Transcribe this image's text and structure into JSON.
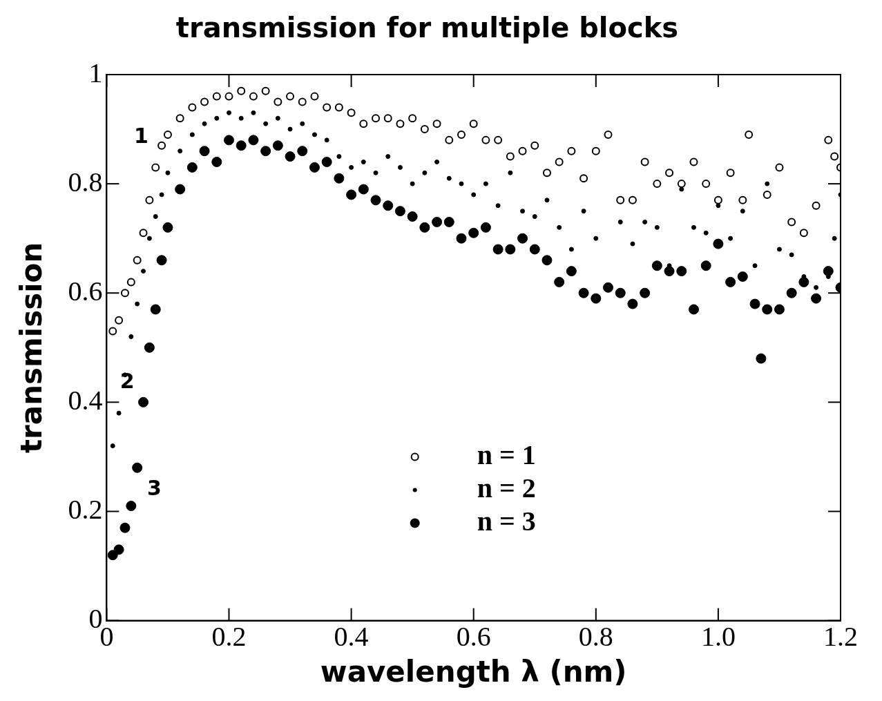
{
  "chart_data": {
    "type": "scatter",
    "title": "transmission for multiple blocks",
    "xlabel": "wavelength λ (nm)",
    "ylabel": "transmission",
    "xlim": [
      0,
      1.2
    ],
    "ylim": [
      0,
      1
    ],
    "xticks": [
      0,
      0.2,
      0.4,
      0.6,
      0.8,
      {
        "value": 1,
        "label": "1.0"
      },
      1.2
    ],
    "yticks": [
      0,
      0.2,
      0.4,
      0.6,
      0.8,
      1
    ],
    "grid": false,
    "legend": "center",
    "marker": "circle",
    "annotations": [
      "1",
      "2",
      "3"
    ],
    "series": [
      {
        "name": "n = 1",
        "color": "#000000",
        "x": [
          0.01,
          0.02,
          0.03,
          0.04,
          0.05,
          0.06,
          0.07,
          0.08,
          0.09,
          0.1,
          0.12,
          0.14,
          0.16,
          0.18,
          0.2,
          0.22,
          0.24,
          0.26,
          0.28,
          0.3,
          0.32,
          0.34,
          0.36,
          0.38,
          0.4,
          0.42,
          0.44,
          0.46,
          0.48,
          0.5,
          0.52,
          0.54,
          0.56,
          0.58,
          0.6,
          0.62,
          0.64,
          0.66,
          0.68,
          0.7,
          0.72,
          0.74,
          0.76,
          0.78,
          0.8,
          0.82,
          0.84,
          0.86,
          0.88,
          0.9,
          0.92,
          0.94,
          0.96,
          0.98,
          1.0,
          1.02,
          1.04,
          1.05,
          1.08,
          1.1,
          1.12,
          1.14,
          1.16,
          1.18,
          1.19,
          1.2
        ],
        "values": [
          0.53,
          0.55,
          0.6,
          0.62,
          0.66,
          0.71,
          0.77,
          0.83,
          0.87,
          0.89,
          0.92,
          0.94,
          0.95,
          0.96,
          0.96,
          0.97,
          0.96,
          0.97,
          0.95,
          0.96,
          0.95,
          0.96,
          0.94,
          0.94,
          0.93,
          0.91,
          0.92,
          0.92,
          0.91,
          0.92,
          0.9,
          0.91,
          0.88,
          0.89,
          0.91,
          0.88,
          0.88,
          0.85,
          0.86,
          0.87,
          0.82,
          0.84,
          0.86,
          0.81,
          0.86,
          0.89,
          0.77,
          0.77,
          0.84,
          0.8,
          0.82,
          0.8,
          0.84,
          0.8,
          0.77,
          0.82,
          0.77,
          0.89,
          0.78,
          0.83,
          0.73,
          0.71,
          0.76,
          0.88,
          0.85,
          0.83
        ]
      },
      {
        "name": "n = 2",
        "color": "#000000",
        "x": [
          0.01,
          0.02,
          0.03,
          0.04,
          0.05,
          0.06,
          0.07,
          0.08,
          0.09,
          0.1,
          0.12,
          0.14,
          0.16,
          0.18,
          0.2,
          0.22,
          0.24,
          0.26,
          0.28,
          0.3,
          0.32,
          0.34,
          0.36,
          0.38,
          0.4,
          0.42,
          0.44,
          0.46,
          0.48,
          0.5,
          0.52,
          0.54,
          0.56,
          0.58,
          0.6,
          0.62,
          0.64,
          0.66,
          0.68,
          0.7,
          0.72,
          0.74,
          0.76,
          0.78,
          0.8,
          0.84,
          0.86,
          0.88,
          0.9,
          0.92,
          0.94,
          0.96,
          0.98,
          1.0,
          1.02,
          1.04,
          1.06,
          1.08,
          1.1,
          1.12,
          1.14,
          1.16,
          1.18,
          1.19,
          1.2
        ],
        "values": [
          0.32,
          0.38,
          0.45,
          0.52,
          0.58,
          0.64,
          0.7,
          0.74,
          0.78,
          0.82,
          0.86,
          0.89,
          0.91,
          0.92,
          0.93,
          0.92,
          0.93,
          0.91,
          0.92,
          0.9,
          0.91,
          0.89,
          0.88,
          0.85,
          0.83,
          0.84,
          0.82,
          0.85,
          0.83,
          0.8,
          0.82,
          0.84,
          0.81,
          0.8,
          0.78,
          0.8,
          0.76,
          0.82,
          0.75,
          0.74,
          0.77,
          0.72,
          0.68,
          0.75,
          0.7,
          0.73,
          0.69,
          0.73,
          0.72,
          0.65,
          0.79,
          0.72,
          0.71,
          0.76,
          0.7,
          0.75,
          0.65,
          0.8,
          0.68,
          0.67,
          0.63,
          0.61,
          0.63,
          0.7,
          0.78
        ]
      },
      {
        "name": "n = 3",
        "color": "#000000",
        "x": [
          0.01,
          0.02,
          0.03,
          0.04,
          0.05,
          0.06,
          0.07,
          0.08,
          0.09,
          0.1,
          0.12,
          0.14,
          0.16,
          0.18,
          0.2,
          0.22,
          0.24,
          0.26,
          0.28,
          0.3,
          0.32,
          0.34,
          0.36,
          0.38,
          0.4,
          0.42,
          0.44,
          0.46,
          0.48,
          0.5,
          0.52,
          0.54,
          0.56,
          0.58,
          0.6,
          0.62,
          0.64,
          0.66,
          0.68,
          0.7,
          0.72,
          0.74,
          0.76,
          0.78,
          0.8,
          0.82,
          0.84,
          0.86,
          0.88,
          0.9,
          0.92,
          0.94,
          0.96,
          0.98,
          1.0,
          1.02,
          1.04,
          1.06,
          1.07,
          1.08,
          1.1,
          1.12,
          1.14,
          1.16,
          1.18,
          1.2
        ],
        "values": [
          0.12,
          0.13,
          0.17,
          0.21,
          0.28,
          0.4,
          0.5,
          0.57,
          0.66,
          0.72,
          0.79,
          0.83,
          0.86,
          0.84,
          0.88,
          0.87,
          0.88,
          0.86,
          0.87,
          0.85,
          0.86,
          0.83,
          0.84,
          0.81,
          0.78,
          0.79,
          0.77,
          0.76,
          0.75,
          0.74,
          0.72,
          0.73,
          0.73,
          0.7,
          0.71,
          0.72,
          0.68,
          0.68,
          0.7,
          0.68,
          0.66,
          0.62,
          0.64,
          0.6,
          0.59,
          0.61,
          0.6,
          0.58,
          0.6,
          0.65,
          0.64,
          0.64,
          0.57,
          0.65,
          0.69,
          0.62,
          0.63,
          0.58,
          0.48,
          0.57,
          0.57,
          0.6,
          0.62,
          0.59,
          0.64,
          0.61
        ]
      }
    ]
  }
}
